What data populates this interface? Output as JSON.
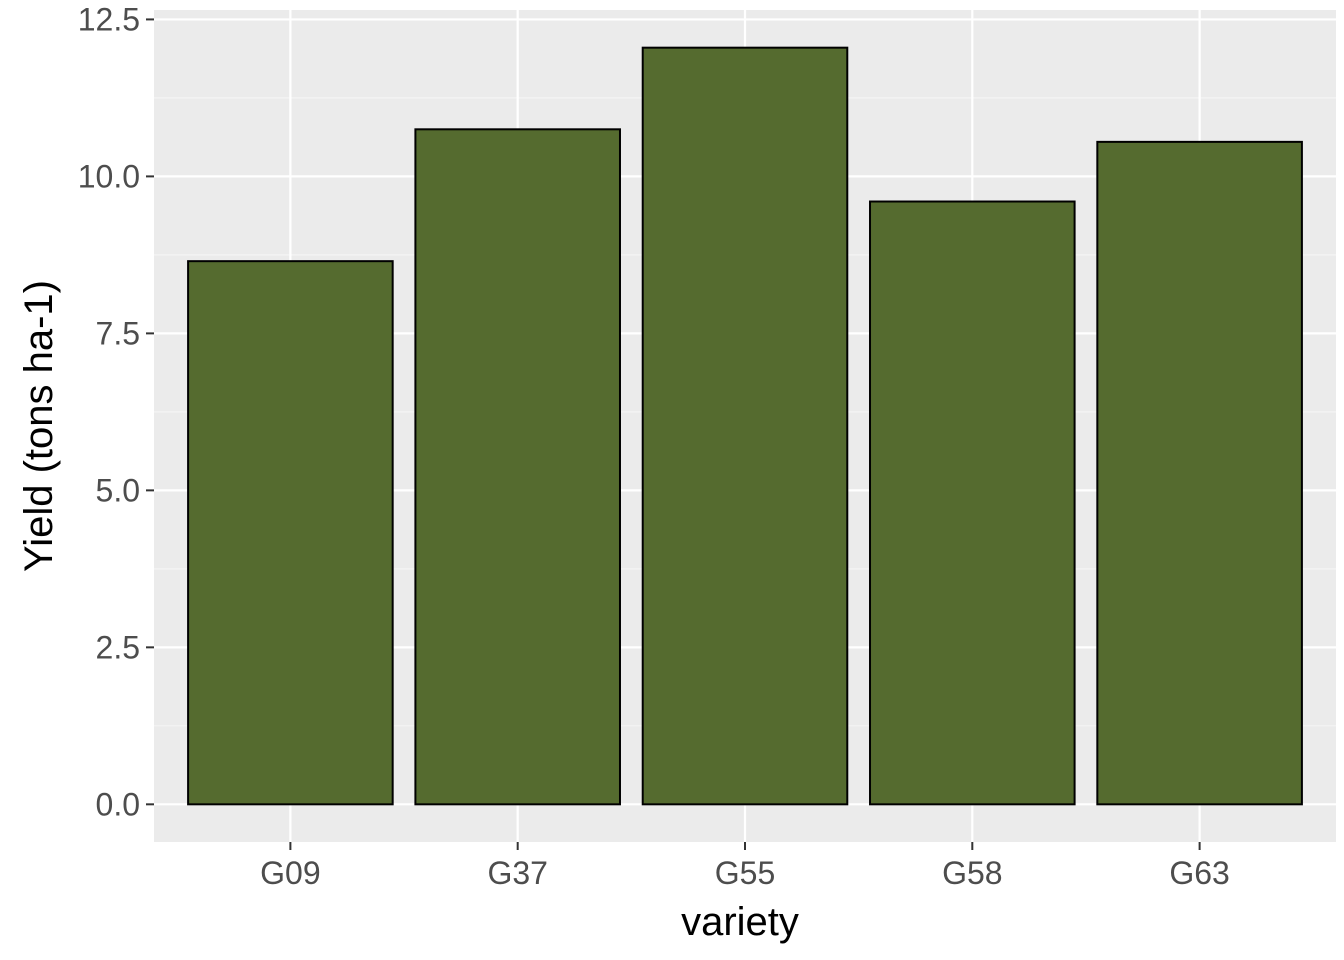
{
  "chart_data": {
    "type": "bar",
    "categories": [
      "G09",
      "G37",
      "G55",
      "G58",
      "G63"
    ],
    "values": [
      8.65,
      10.75,
      12.05,
      9.6,
      10.55
    ],
    "xlabel": "variety",
    "ylabel": "Yield (tons ha-1)",
    "ylim": [
      -0.6,
      12.65
    ],
    "yticks": [
      0.0,
      2.5,
      5.0,
      7.5,
      10.0,
      12.5
    ],
    "ytick_labels": [
      "0.0",
      "2.5",
      "5.0",
      "7.5",
      "10.0",
      "12.5"
    ],
    "grid": true,
    "legend": "none",
    "colors": {
      "bar_fill": "#556b2f",
      "bar_outline": "#000000",
      "panel_background": "#ebebeb",
      "grid_major": "#ffffff",
      "grid_minor": "#f5f5f5",
      "tick_label": "#4d4d4d",
      "axis_title": "#000000"
    }
  }
}
